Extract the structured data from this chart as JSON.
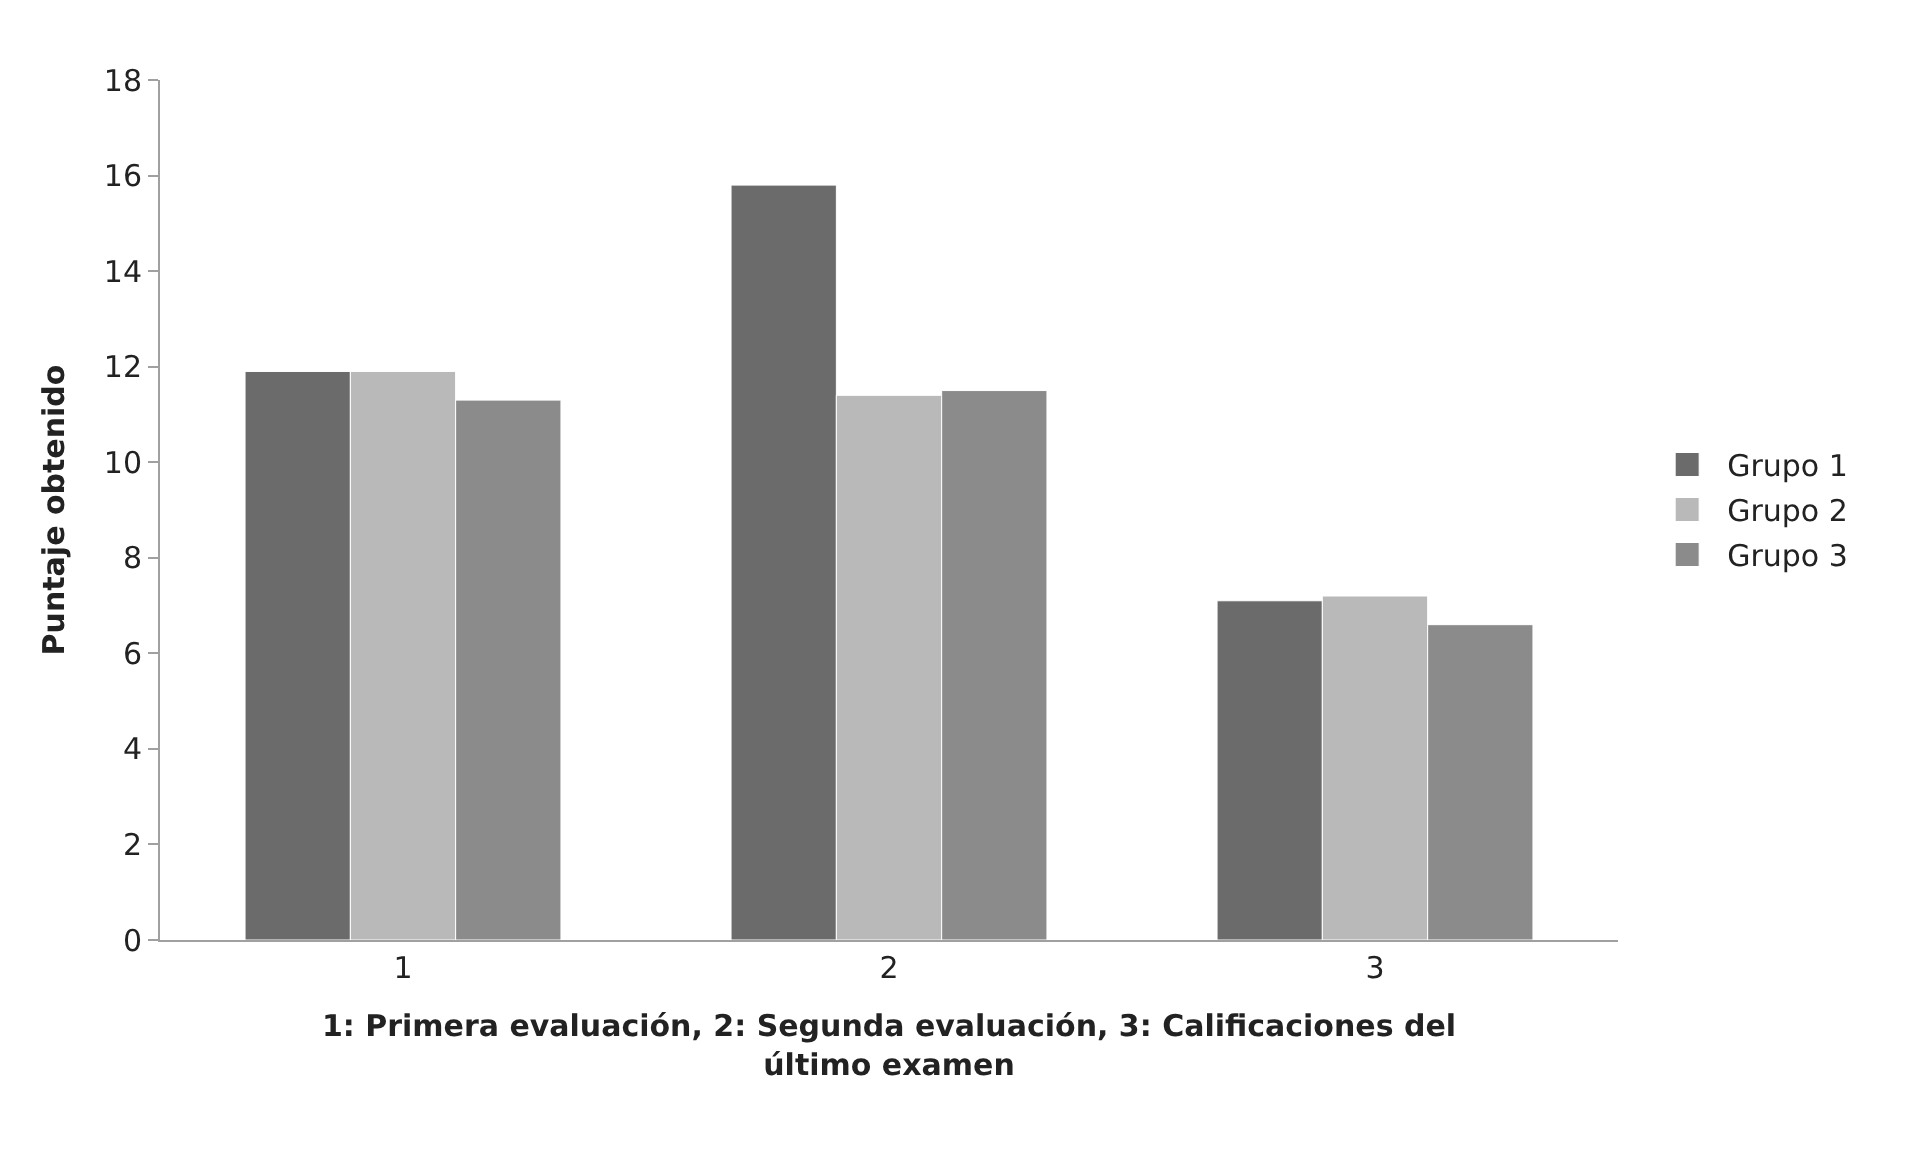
{
  "chart_data": {
    "type": "bar",
    "categories": [
      "1",
      "2",
      "3"
    ],
    "series": [
      {
        "name": "Grupo 1",
        "color": "#6b6b6b",
        "values": [
          11.9,
          15.8,
          7.1
        ]
      },
      {
        "name": "Grupo 2",
        "color": "#b9b9b9",
        "values": [
          11.9,
          11.4,
          7.2
        ]
      },
      {
        "name": "Grupo 3",
        "color": "#8b8b8b",
        "values": [
          11.3,
          11.5,
          6.6
        ]
      }
    ],
    "xlabel": "1: Primera evaluación, 2: Segunda evaluación, 3: Calificaciones del último examen",
    "ylabel": "Puntaje obtenido",
    "ylim": [
      0,
      18
    ],
    "yticks": [
      0,
      2,
      4,
      6,
      8,
      10,
      12,
      14,
      16,
      18
    ],
    "grid": false,
    "legend": "right"
  }
}
